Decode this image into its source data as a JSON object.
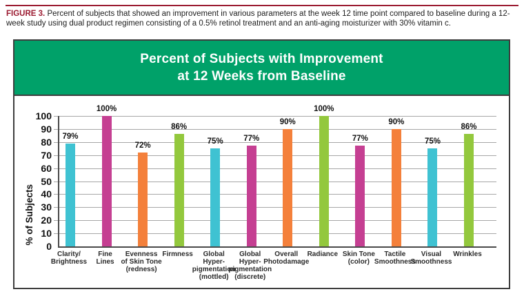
{
  "caption": {
    "label": "FIGURE 3.",
    "text": "Percent of subjects that showed an improvement in various parameters at the week 12 time point compared to baseline during a 12-week study using dual product regimen consisting of a 0.5% retinol treatment and an anti-aging moisturizer with 30% vitamin c."
  },
  "colors": {
    "accent_red": "#9B1B31",
    "header_green": "#00A169",
    "header_text": "#FFFFFF",
    "grid": "#A6A6A6",
    "axis": "#4A4A4A",
    "bar_cyan": "#3FC2D2",
    "bar_magenta": "#C53F92",
    "bar_orange": "#F4803B",
    "bar_green": "#93C83D"
  },
  "chart_data": {
    "type": "bar",
    "title": "Percent of Subjects with Improvement at 12 Weeks from Baseline",
    "title_lines": [
      "Percent of Subjects with Improvement",
      "at 12 Weeks from Baseline"
    ],
    "xlabel": "",
    "ylabel": "% of Subjects",
    "ylim": [
      0,
      100
    ],
    "ytick_step": 10,
    "grid": "horizontal",
    "legend": "none",
    "categories": [
      "Clarity/Brightness",
      "Fine Lines",
      "Evenness of Skin Tone (redness)",
      "Firmness",
      "Global Hyper-pigmentation (mottled)",
      "Global Hyper-pigmentation (discrete)",
      "Overall Photodamage",
      "Radiance",
      "Skin Tone (color)",
      "Tactile Smoothness",
      "Visual Smoothness",
      "Wrinkles"
    ],
    "category_label_lines": [
      [
        "Clarity/",
        "Brightness"
      ],
      [
        "Fine",
        "Lines"
      ],
      [
        "Evenness",
        "of Skin Tone",
        "(redness)"
      ],
      [
        "Firmness"
      ],
      [
        "Global",
        "Hyper-",
        "pigmentation",
        "(mottled)"
      ],
      [
        "Global",
        "Hyper-",
        "pigmentation",
        "(discrete)"
      ],
      [
        "Overall",
        "Photodamage"
      ],
      [
        "Radiance"
      ],
      [
        "Skin Tone",
        "(color)"
      ],
      [
        "Tactile",
        "Smoothness"
      ],
      [
        "Visual",
        "Smoothness"
      ],
      [
        "Wrinkles"
      ]
    ],
    "values": [
      79,
      100,
      72,
      86,
      75,
      77,
      90,
      100,
      77,
      90,
      75,
      86
    ],
    "value_labels": [
      "79%",
      "100%",
      "72%",
      "86%",
      "75%",
      "77%",
      "90%",
      "100%",
      "77%",
      "90%",
      "75%",
      "86%"
    ],
    "bar_color_names": [
      "cyan",
      "magenta",
      "orange",
      "green",
      "cyan",
      "magenta",
      "orange",
      "green",
      "magenta",
      "orange",
      "cyan",
      "green"
    ]
  }
}
